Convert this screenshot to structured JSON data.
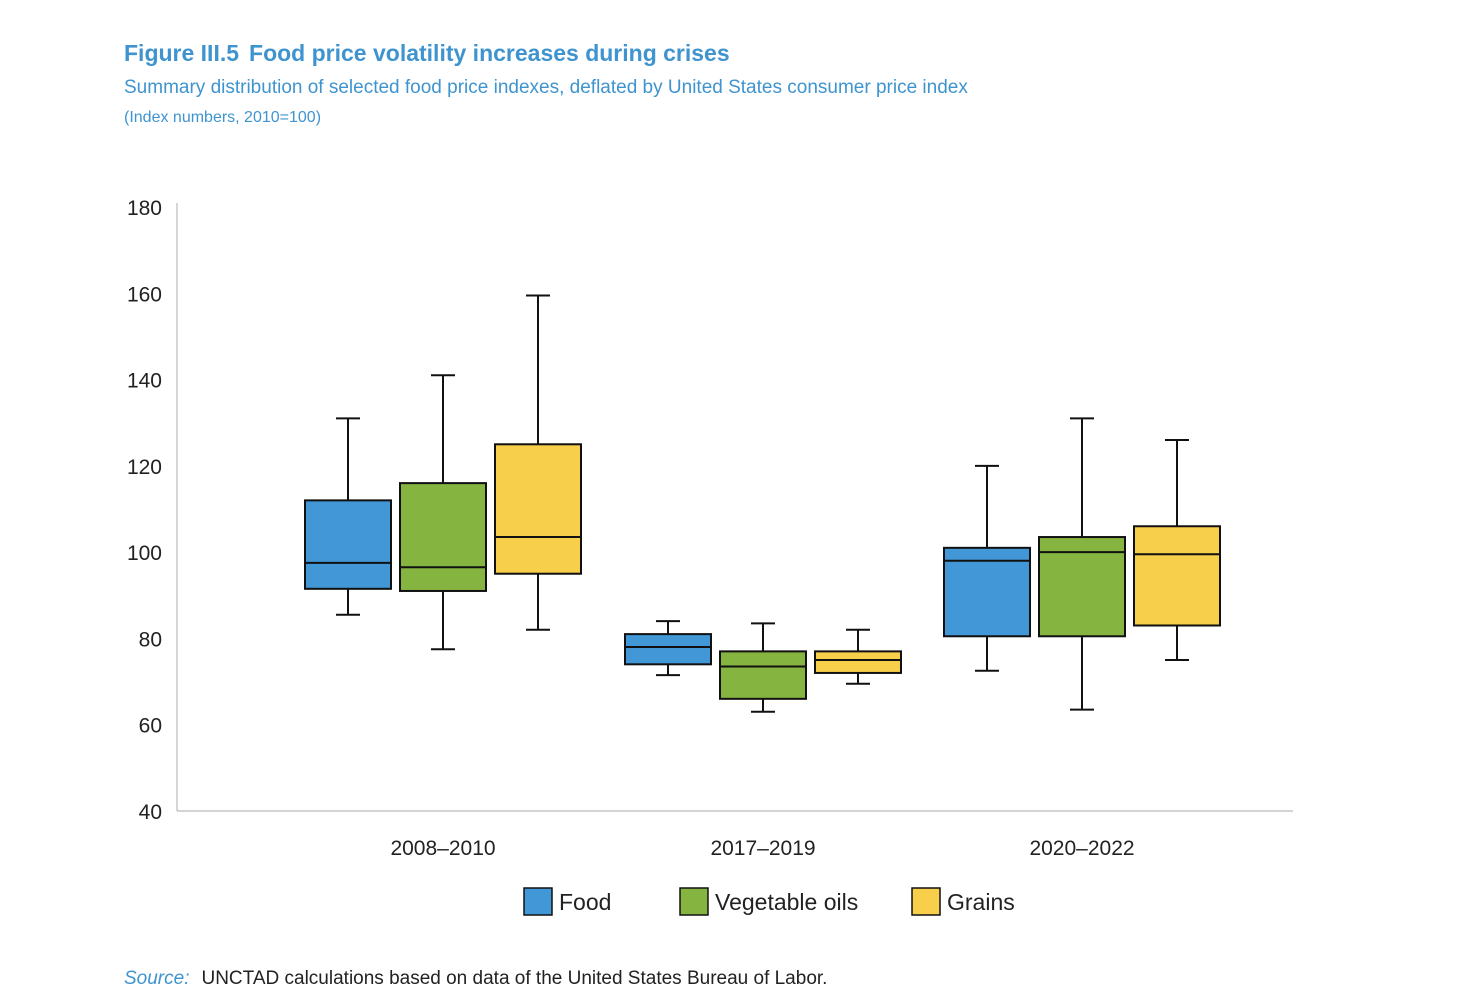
{
  "header": {
    "figure_label": "Figure III.5",
    "title": "Food price volatility increases during crises",
    "subtitle": "Summary distribution of selected food price indexes, deflated by United States consumer price index",
    "units": "(Index numbers, 2010=100)"
  },
  "source": {
    "label": "Source:",
    "text": "UNCTAD calculations based on data of the United States Bureau of Labor."
  },
  "colors": {
    "Food": "#4297d6",
    "Vegetable oils": "#86b441",
    "Grains": "#f8cf4b",
    "axis": "#bbbbbb",
    "title": "#3f94cf"
  },
  "chart_data": {
    "type": "boxplot",
    "title": "Food price volatility increases during crises",
    "xlabel": "",
    "ylabel": "",
    "ylim": [
      40,
      180
    ],
    "yticks": [
      40,
      60,
      80,
      100,
      120,
      140,
      160,
      180
    ],
    "grid": false,
    "legend_position": "bottom-center",
    "categories": [
      "2008–2010",
      "2017–2019",
      "2020–2022"
    ],
    "series": [
      {
        "name": "Food",
        "boxes": [
          {
            "min": 85.5,
            "q1": 91.5,
            "median": 97.5,
            "q3": 112,
            "max": 131
          },
          {
            "min": 71.5,
            "q1": 74,
            "median": 78,
            "q3": 81,
            "max": 84
          },
          {
            "min": 72.5,
            "q1": 80.5,
            "median": 98,
            "q3": 101,
            "max": 120
          }
        ]
      },
      {
        "name": "Vegetable oils",
        "boxes": [
          {
            "min": 77.5,
            "q1": 91,
            "median": 96.5,
            "q3": 116,
            "max": 141
          },
          {
            "min": 63,
            "q1": 66,
            "median": 73.5,
            "q3": 77,
            "max": 83.5
          },
          {
            "min": 63.5,
            "q1": 80.5,
            "median": 100,
            "q3": 103.5,
            "max": 131
          }
        ]
      },
      {
        "name": "Grains",
        "boxes": [
          {
            "min": 82,
            "q1": 95,
            "median": 103.5,
            "q3": 125,
            "max": 159.5
          },
          {
            "min": 69.5,
            "q1": 72,
            "median": 75,
            "q3": 77,
            "max": 82
          },
          {
            "min": 75,
            "q1": 83,
            "median": 99.5,
            "q3": 106,
            "max": 126
          }
        ]
      }
    ]
  }
}
